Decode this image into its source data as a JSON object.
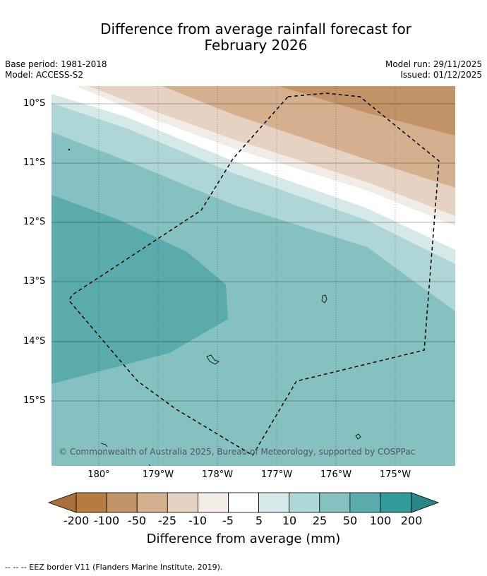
{
  "title_line1": "Difference from average rainfall forecast for",
  "title_line2": "February 2026",
  "base_period": "Base period: 1981-2018",
  "model": "Model: ACCESS-S2",
  "model_run": "Model run: 29/11/2025",
  "issued": "Issued: 01/12/2025",
  "copyright": "© Commonwealth of Australia 2025, Bureau of Meteorology, supported by COSPPac",
  "latitude_labels": [
    "10°S",
    "11°S",
    "12°S",
    "13°S",
    "14°S",
    "15°S"
  ],
  "longitude_labels": [
    "180°",
    "179°W",
    "178°W",
    "177°W",
    "176°W",
    "175°W"
  ],
  "colorbar": {
    "ticks": [
      "-200",
      "-100",
      "-50",
      "-25",
      "-10",
      "-5",
      "5",
      "10",
      "25",
      "50",
      "100",
      "200"
    ],
    "colors": [
      "#a87038",
      "#b57c41",
      "#c29366",
      "#d4b08f",
      "#e5d2c2",
      "#f2ece6",
      "#ffffff",
      "#d5e9e9",
      "#aed6d6",
      "#84c1c0",
      "#5aabab",
      "#329b9a",
      "#2a8585"
    ],
    "label": "Difference from average (mm)"
  },
  "footnote": "--  --  -- EEZ border V11 (Flanders Marine Institute, 2019).",
  "legend_line_style": "dashed"
}
